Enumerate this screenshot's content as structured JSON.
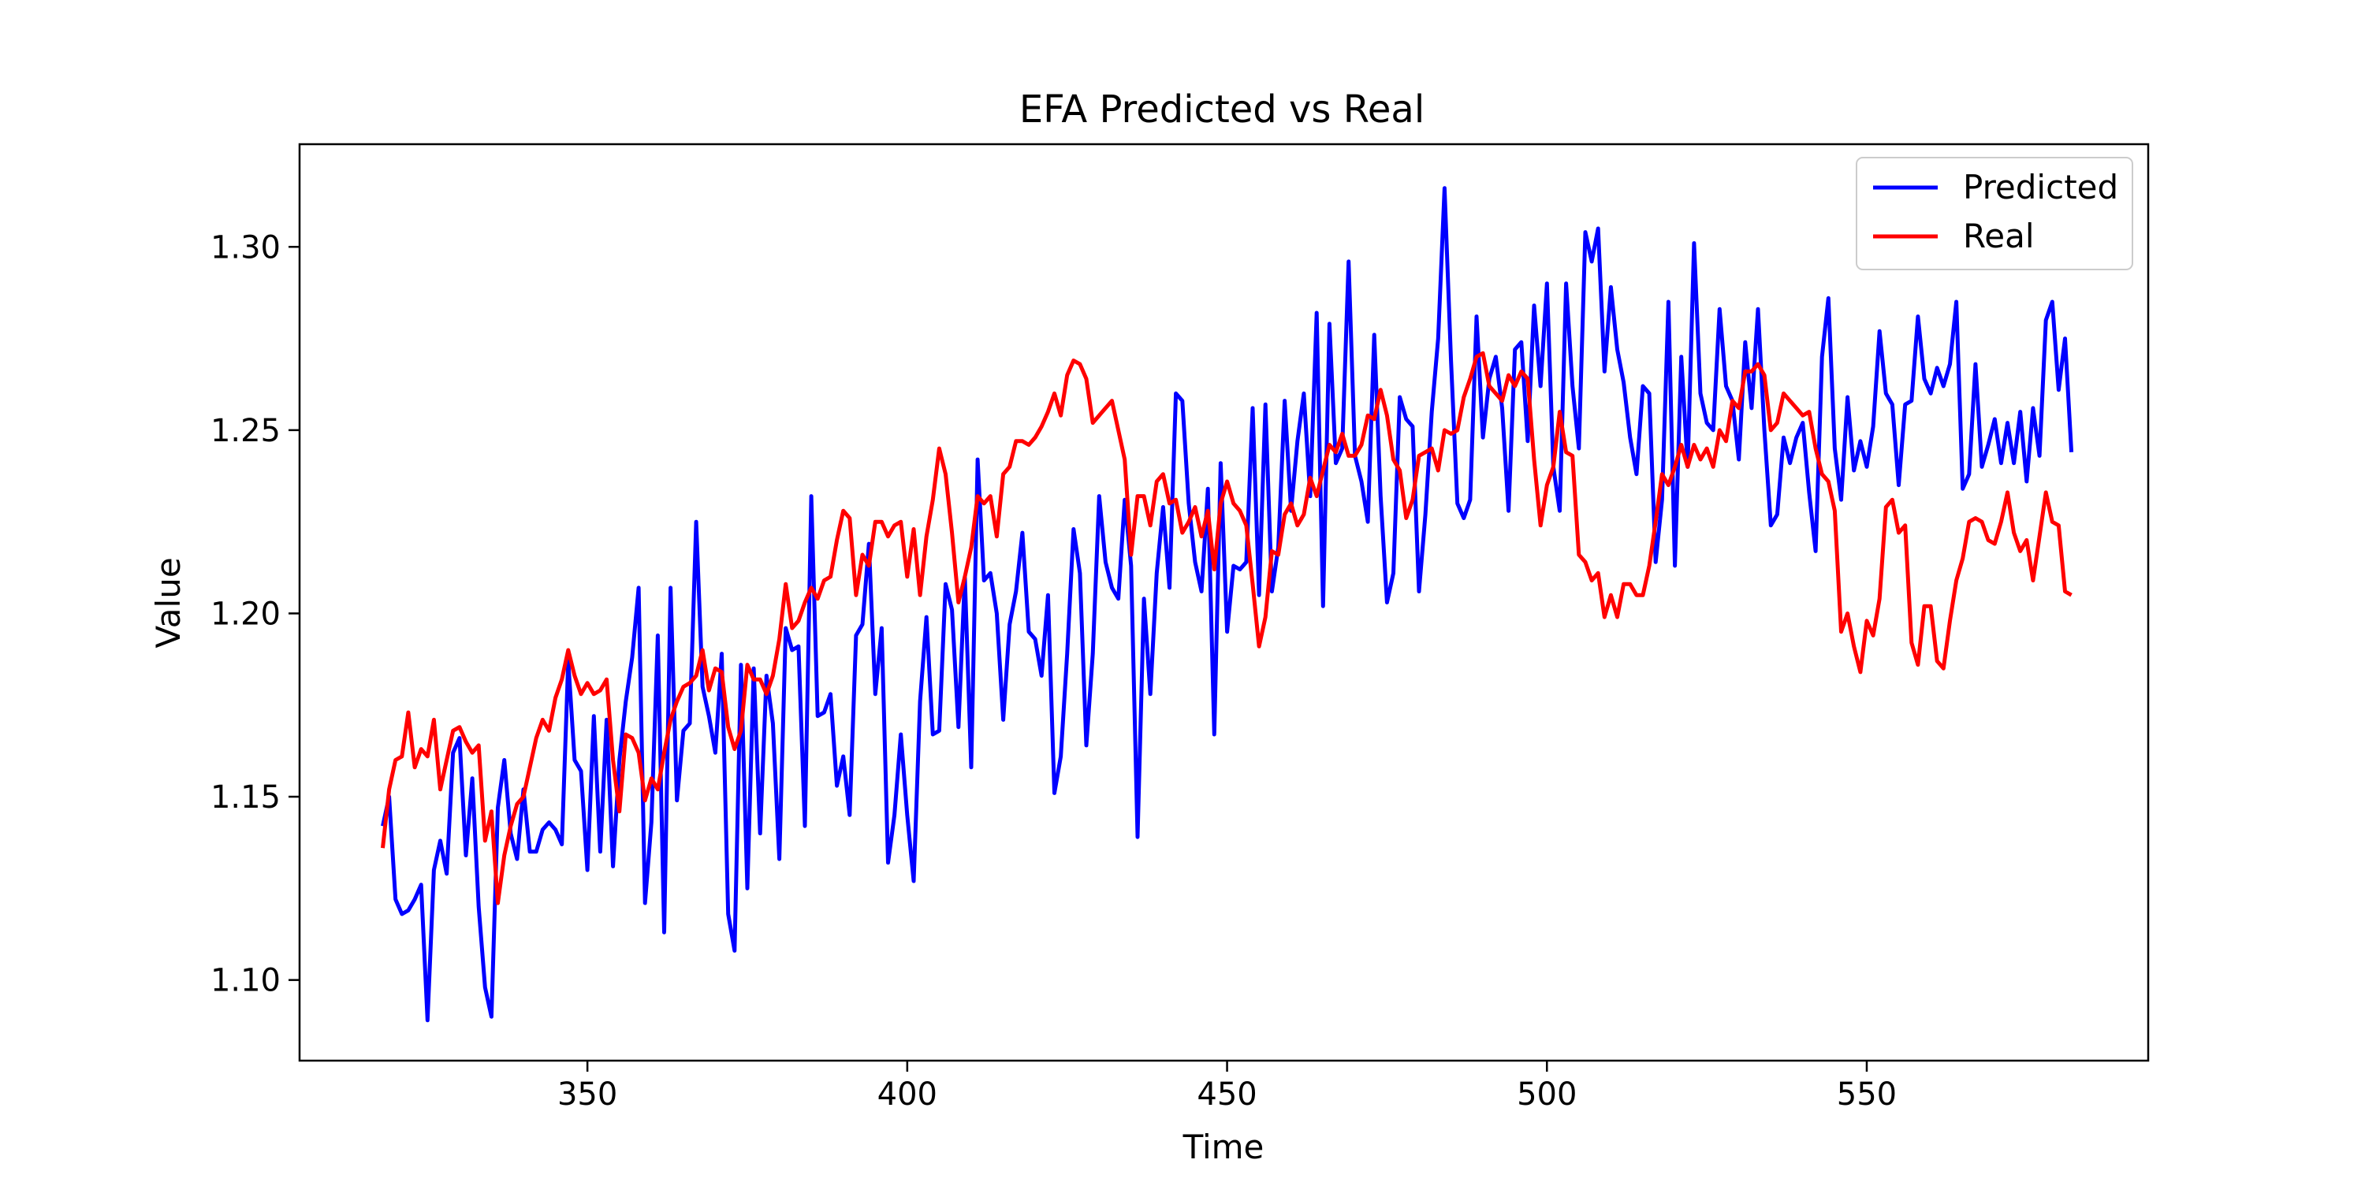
{
  "chart_data": {
    "type": "line",
    "title": "EFA Predicted vs Real",
    "xlabel": "Time",
    "ylabel": "Value",
    "xlim": [
      305,
      594
    ],
    "ylim": [
      1.078,
      1.328
    ],
    "xticks": [
      350,
      400,
      450,
      500,
      550
    ],
    "yticks": [
      1.1,
      1.15,
      1.2,
      1.25,
      1.3
    ],
    "grid": false,
    "legend_position": "top-right",
    "x_start": 318,
    "x_step": 1,
    "series": [
      {
        "name": "Predicted",
        "color": "#0000ff",
        "values": [
          1.142,
          1.15,
          1.122,
          1.118,
          1.119,
          1.122,
          1.126,
          1.089,
          1.13,
          1.138,
          1.129,
          1.162,
          1.166,
          1.134,
          1.155,
          1.12,
          1.098,
          1.09,
          1.147,
          1.16,
          1.14,
          1.133,
          1.152,
          1.135,
          1.135,
          1.141,
          1.143,
          1.141,
          1.137,
          1.187,
          1.16,
          1.157,
          1.13,
          1.172,
          1.135,
          1.171,
          1.131,
          1.16,
          1.176,
          1.188,
          1.207,
          1.121,
          1.143,
          1.194,
          1.113,
          1.207,
          1.149,
          1.168,
          1.17,
          1.225,
          1.18,
          1.172,
          1.162,
          1.189,
          1.118,
          1.108,
          1.186,
          1.125,
          1.185,
          1.14,
          1.183,
          1.17,
          1.133,
          1.196,
          1.19,
          1.191,
          1.142,
          1.232,
          1.172,
          1.173,
          1.178,
          1.153,
          1.161,
          1.145,
          1.194,
          1.197,
          1.219,
          1.178,
          1.196,
          1.132,
          1.145,
          1.167,
          1.145,
          1.127,
          1.176,
          1.199,
          1.167,
          1.168,
          1.208,
          1.201,
          1.169,
          1.21,
          1.158,
          1.242,
          1.209,
          1.211,
          1.2,
          1.171,
          1.197,
          1.206,
          1.222,
          1.195,
          1.193,
          1.183,
          1.205,
          1.151,
          1.161,
          1.189,
          1.223,
          1.211,
          1.164,
          1.189,
          1.232,
          1.214,
          1.207,
          1.204,
          1.231,
          1.213,
          1.139,
          1.204,
          1.178,
          1.211,
          1.229,
          1.207,
          1.26,
          1.258,
          1.23,
          1.214,
          1.206,
          1.234,
          1.167,
          1.241,
          1.195,
          1.213,
          1.212,
          1.214,
          1.256,
          1.205,
          1.257,
          1.206,
          1.218,
          1.258,
          1.228,
          1.247,
          1.26,
          1.232,
          1.282,
          1.202,
          1.279,
          1.241,
          1.245,
          1.296,
          1.243,
          1.236,
          1.225,
          1.276,
          1.232,
          1.203,
          1.211,
          1.259,
          1.253,
          1.251,
          1.206,
          1.227,
          1.255,
          1.275,
          1.316,
          1.269,
          1.23,
          1.226,
          1.231,
          1.281,
          1.248,
          1.264,
          1.27,
          1.256,
          1.228,
          1.272,
          1.274,
          1.247,
          1.284,
          1.262,
          1.29,
          1.24,
          1.228,
          1.29,
          1.262,
          1.245,
          1.304,
          1.296,
          1.305,
          1.266,
          1.289,
          1.272,
          1.263,
          1.248,
          1.238,
          1.262,
          1.26,
          1.214,
          1.231,
          1.285,
          1.213,
          1.27,
          1.24,
          1.301,
          1.26,
          1.252,
          1.25,
          1.283,
          1.262,
          1.258,
          1.242,
          1.274,
          1.256,
          1.283,
          1.25,
          1.224,
          1.227,
          1.248,
          1.241,
          1.248,
          1.252,
          1.233,
          1.217,
          1.27,
          1.286,
          1.245,
          1.231,
          1.259,
          1.239,
          1.247,
          1.24,
          1.251,
          1.277,
          1.26,
          1.257,
          1.235,
          1.257,
          1.258,
          1.281,
          1.264,
          1.26,
          1.267,
          1.262,
          1.268,
          1.285,
          1.234,
          1.238,
          1.268,
          1.24,
          1.246,
          1.253,
          1.241,
          1.252,
          1.241,
          1.255,
          1.236,
          1.256,
          1.243,
          1.28,
          1.285,
          1.261,
          1.275,
          1.244
        ]
      },
      {
        "name": "Real",
        "color": "#ff0000",
        "values": [
          1.136,
          1.152,
          1.16,
          1.161,
          1.173,
          1.158,
          1.163,
          1.161,
          1.171,
          1.152,
          1.16,
          1.168,
          1.169,
          1.165,
          1.162,
          1.164,
          1.138,
          1.146,
          1.121,
          1.134,
          1.142,
          1.148,
          1.15,
          1.158,
          1.166,
          1.171,
          1.168,
          1.177,
          1.182,
          1.19,
          1.183,
          1.178,
          1.181,
          1.178,
          1.179,
          1.182,
          1.16,
          1.146,
          1.167,
          1.166,
          1.162,
          1.149,
          1.155,
          1.152,
          1.162,
          1.171,
          1.176,
          1.18,
          1.181,
          1.183,
          1.19,
          1.179,
          1.185,
          1.184,
          1.169,
          1.163,
          1.168,
          1.186,
          1.182,
          1.182,
          1.178,
          1.183,
          1.193,
          1.208,
          1.196,
          1.198,
          1.203,
          1.207,
          1.204,
          1.209,
          1.21,
          1.22,
          1.228,
          1.226,
          1.205,
          1.216,
          1.213,
          1.225,
          1.225,
          1.221,
          1.224,
          1.225,
          1.21,
          1.223,
          1.205,
          1.221,
          1.231,
          1.245,
          1.238,
          1.222,
          1.203,
          1.21,
          1.218,
          1.232,
          1.23,
          1.232,
          1.221,
          1.238,
          1.24,
          1.247,
          1.247,
          1.246,
          1.248,
          1.251,
          1.255,
          1.26,
          1.254,
          1.265,
          1.269,
          1.268,
          1.264,
          1.252,
          1.254,
          1.256,
          1.258,
          1.25,
          1.242,
          1.216,
          1.232,
          1.232,
          1.224,
          1.236,
          1.238,
          1.23,
          1.231,
          1.222,
          1.225,
          1.229,
          1.221,
          1.228,
          1.212,
          1.23,
          1.236,
          1.23,
          1.228,
          1.224,
          1.208,
          1.191,
          1.199,
          1.217,
          1.216,
          1.227,
          1.23,
          1.224,
          1.227,
          1.237,
          1.232,
          1.239,
          1.246,
          1.244,
          1.249,
          1.243,
          1.243,
          1.246,
          1.254,
          1.253,
          1.261,
          1.254,
          1.242,
          1.239,
          1.226,
          1.231,
          1.243,
          1.244,
          1.245,
          1.239,
          1.25,
          1.249,
          1.25,
          1.259,
          1.264,
          1.27,
          1.271,
          1.262,
          1.26,
          1.258,
          1.265,
          1.262,
          1.266,
          1.264,
          1.242,
          1.224,
          1.235,
          1.24,
          1.255,
          1.244,
          1.243,
          1.216,
          1.214,
          1.209,
          1.211,
          1.199,
          1.205,
          1.199,
          1.208,
          1.208,
          1.205,
          1.205,
          1.213,
          1.225,
          1.238,
          1.235,
          1.24,
          1.246,
          1.24,
          1.246,
          1.242,
          1.245,
          1.24,
          1.25,
          1.247,
          1.258,
          1.256,
          1.266,
          1.266,
          1.268,
          1.265,
          1.25,
          1.252,
          1.26,
          1.258,
          1.256,
          1.254,
          1.255,
          1.245,
          1.238,
          1.236,
          1.228,
          1.195,
          1.2,
          1.191,
          1.184,
          1.198,
          1.194,
          1.204,
          1.229,
          1.231,
          1.222,
          1.224,
          1.192,
          1.186,
          1.202,
          1.202,
          1.187,
          1.185,
          1.198,
          1.209,
          1.215,
          1.225,
          1.226,
          1.225,
          1.22,
          1.219,
          1.225,
          1.233,
          1.222,
          1.217,
          1.22,
          1.209,
          1.221,
          1.233,
          1.225,
          1.224,
          1.206,
          1.205
        ]
      }
    ]
  }
}
